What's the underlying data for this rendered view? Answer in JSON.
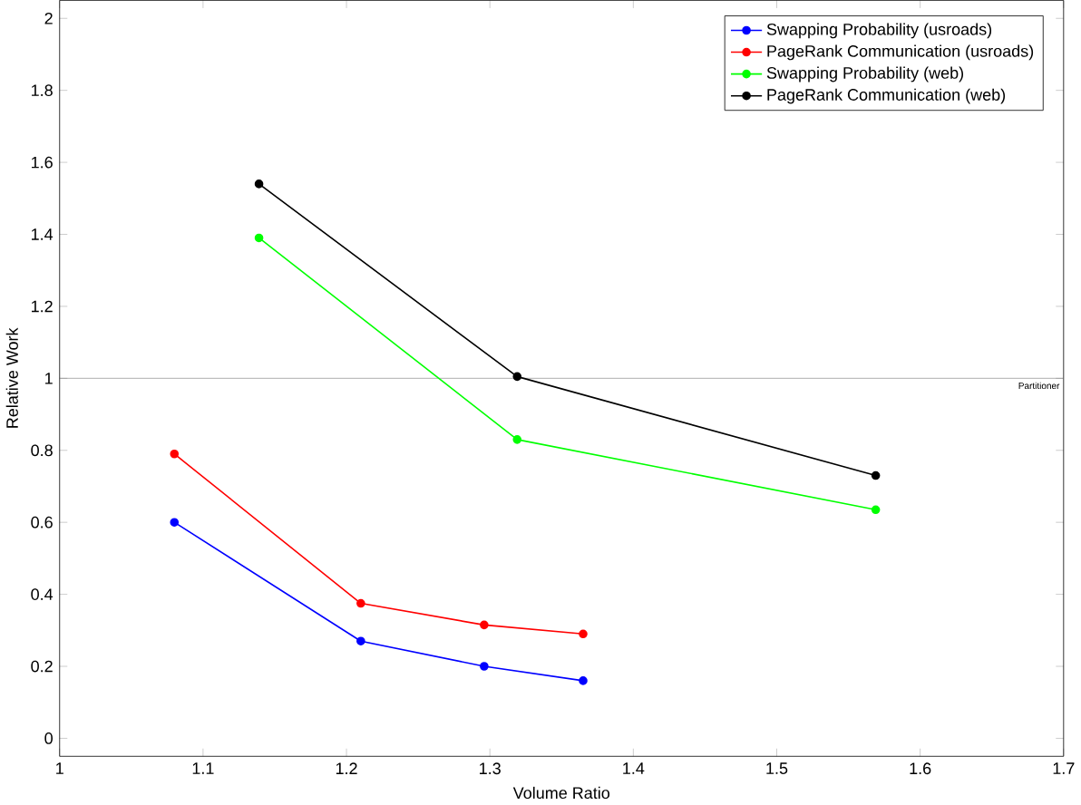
{
  "chart_data": {
    "type": "line",
    "xlabel": "Volume Ratio",
    "ylabel": "Relative Work",
    "xlim": [
      1,
      1.7
    ],
    "ylim": [
      -0.05,
      2.05
    ],
    "xticks": [
      1,
      1.1,
      1.2,
      1.3,
      1.4,
      1.5,
      1.6,
      1.7
    ],
    "yticks": [
      0,
      0.2,
      0.4,
      0.6,
      0.8,
      1,
      1.2,
      1.4,
      1.6,
      1.8,
      2
    ],
    "marker": "circle",
    "legend": "top right",
    "grid": false,
    "ref_lines": [
      {
        "axis": "y",
        "value": 1,
        "label": "Partitioner",
        "color": "#808080"
      }
    ],
    "series": [
      {
        "name": "Swapping Probability (usroads)",
        "color": "#0000ff",
        "x": [
          1.08,
          1.21,
          1.296,
          1.365
        ],
        "values": [
          0.6,
          0.27,
          0.2,
          0.16
        ]
      },
      {
        "name": "PageRank Communication (usroads)",
        "color": "#ff0000",
        "x": [
          1.08,
          1.21,
          1.296,
          1.365
        ],
        "values": [
          0.79,
          0.375,
          0.315,
          0.29
        ]
      },
      {
        "name": "Swapping Probability (web)",
        "color": "#00ff00",
        "x": [
          1.139,
          1.319,
          1.569
        ],
        "values": [
          1.39,
          0.83,
          0.635
        ]
      },
      {
        "name": "PageRank Communication (web)",
        "color": "#000000",
        "x": [
          1.139,
          1.319,
          1.569
        ],
        "values": [
          1.54,
          1.005,
          0.73
        ]
      }
    ]
  }
}
